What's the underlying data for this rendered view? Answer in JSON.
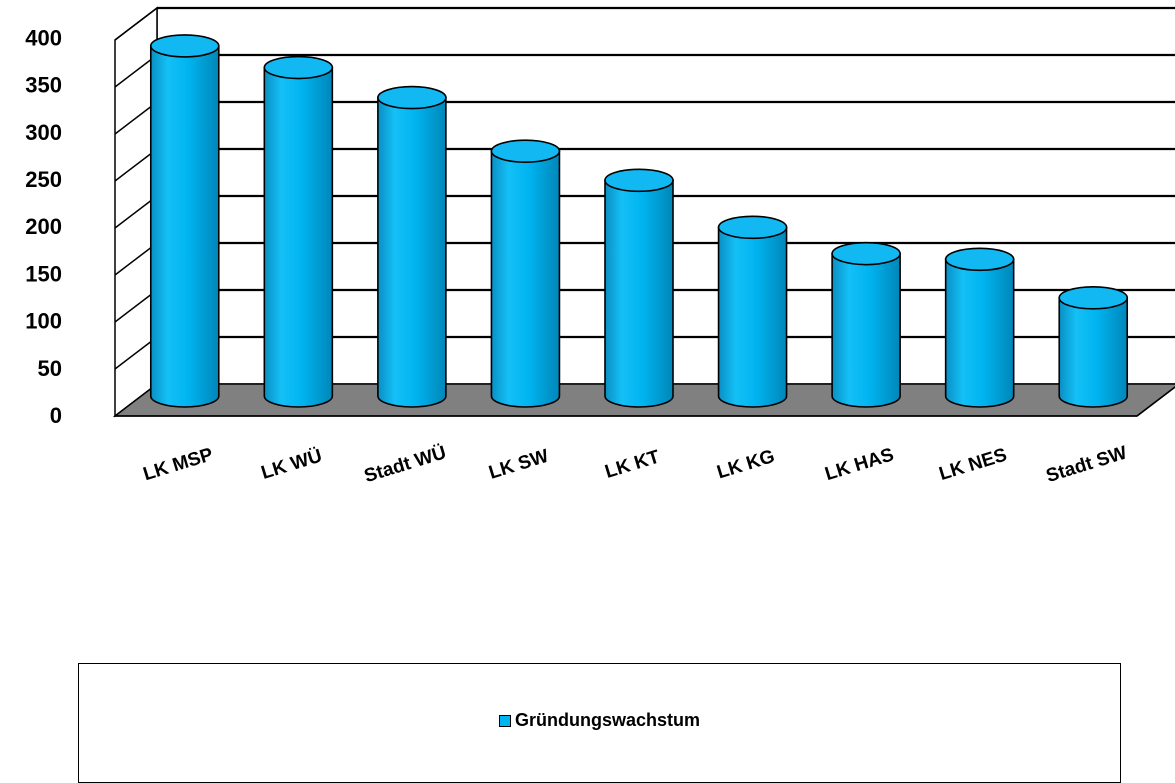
{
  "chart_data": {
    "type": "bar",
    "style": "3d-cylinder",
    "categories": [
      "LK MSP",
      "LK WÜ",
      "Stadt WÜ",
      "LK SW",
      "LK KT",
      "LK KG",
      "LK HAS",
      "LK NES",
      "Stadt SW"
    ],
    "series": [
      {
        "name": "Gründungswachstum",
        "values": [
          365,
          342,
          310,
          253,
          222,
          172,
          144,
          138,
          97
        ]
      }
    ],
    "ylim": [
      0,
      400
    ],
    "yticks": [
      0,
      50,
      100,
      150,
      200,
      250,
      300,
      350,
      400
    ],
    "ytick_labels": [
      "0",
      "50",
      "100",
      "150",
      "200",
      "250",
      "300",
      "350",
      "400"
    ],
    "grid": true,
    "legend": "bottom",
    "title": "",
    "xlabel": "",
    "ylabel": ""
  },
  "colors": {
    "bar": "#00b4f0",
    "bar_edge": "#000000",
    "floor": "#808080",
    "grid": "#000000"
  }
}
